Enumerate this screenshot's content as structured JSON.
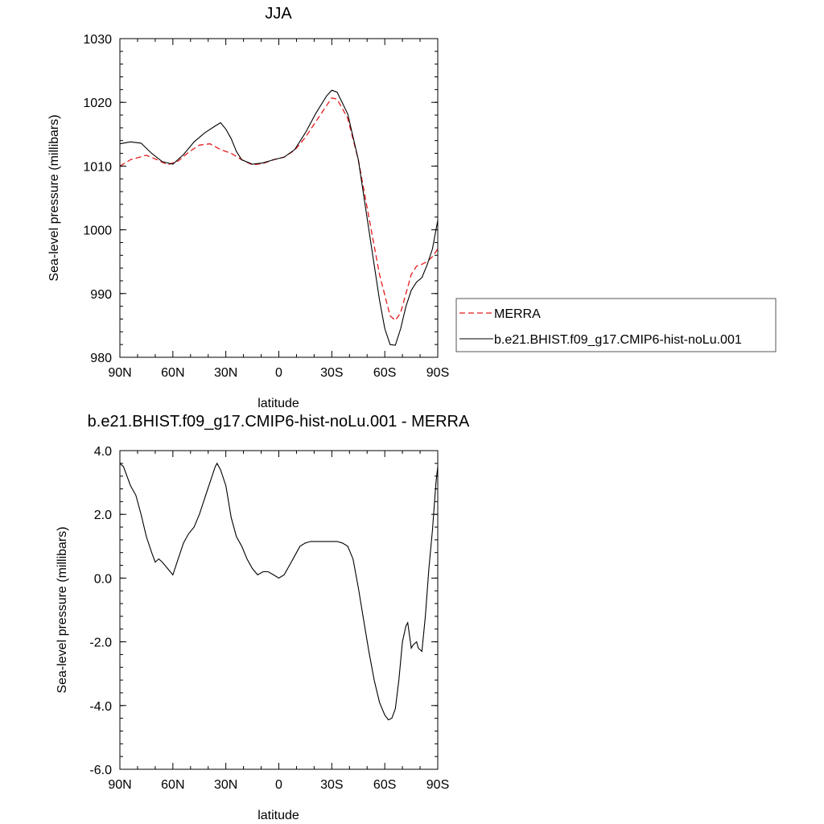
{
  "chart_data": [
    {
      "type": "line",
      "title": "JJA",
      "xlabel": "latitude",
      "ylabel": "Sea-level pressure (millibars)",
      "xlim": [
        90,
        -90
      ],
      "ylim": [
        980,
        1030
      ],
      "x_ticks": [
        90,
        60,
        30,
        0,
        -30,
        -60,
        -90
      ],
      "x_tick_labels": [
        "90N",
        "60N",
        "30N",
        "0",
        "30S",
        "60S",
        "90S"
      ],
      "y_ticks": [
        980,
        990,
        1000,
        1010,
        1020,
        1030
      ],
      "y_tick_labels": [
        "980",
        "990",
        "1000",
        "1010",
        "1020",
        "1030"
      ],
      "legend_position": "right",
      "series": [
        {
          "name": "MERRA",
          "color": "#e41a1c",
          "style": "dashed",
          "x": [
            90,
            84,
            75,
            69,
            63,
            57,
            51,
            45,
            39,
            33,
            27,
            21,
            15,
            9,
            3,
            -3,
            -9,
            -15,
            -21,
            -27,
            -30,
            -33,
            -39,
            -45,
            -51,
            -57,
            -63,
            -66,
            -69,
            -72,
            -75,
            -78,
            -81,
            -84,
            -87,
            -90
          ],
          "y": [
            1010.0,
            1011.0,
            1011.7,
            1011.0,
            1010.2,
            1010.8,
            1012.2,
            1013.3,
            1013.5,
            1012.6,
            1012.0,
            1011.0,
            1010.2,
            1010.4,
            1011.0,
            1011.4,
            1012.5,
            1014.5,
            1017.0,
            1019.5,
            1020.7,
            1020.5,
            1017.5,
            1011.0,
            1002.0,
            993.0,
            986.5,
            985.8,
            987.0,
            990.0,
            993.0,
            994.3,
            994.6,
            995.0,
            995.8,
            997.0
          ]
        },
        {
          "name": "b.e21.BHIST.f09_g17.CMIP6-hist-noLu.001",
          "color": "#000000",
          "style": "solid",
          "x": [
            90,
            84,
            78,
            72,
            66,
            60,
            54,
            48,
            42,
            36,
            33,
            30,
            27,
            24,
            21,
            15,
            9,
            3,
            -3,
            -9,
            -15,
            -21,
            -27,
            -30,
            -33,
            -39,
            -45,
            -51,
            -57,
            -60,
            -63,
            -66,
            -69,
            -72,
            -75,
            -78,
            -81,
            -84,
            -87,
            -90
          ],
          "y": [
            1013.5,
            1013.8,
            1013.6,
            1012.0,
            1010.7,
            1010.3,
            1011.8,
            1013.8,
            1015.2,
            1016.3,
            1016.8,
            1015.8,
            1014.3,
            1012.3,
            1011.0,
            1010.3,
            1010.5,
            1011.0,
            1011.4,
            1012.6,
            1015.2,
            1018.3,
            1021.0,
            1021.9,
            1021.6,
            1018.2,
            1011.0,
            1000.0,
            989.0,
            984.5,
            982.0,
            981.9,
            984.5,
            988.0,
            990.5,
            991.8,
            992.5,
            994.5,
            997.0,
            1001.5
          ]
        }
      ]
    },
    {
      "type": "line",
      "title": "b.e21.BHIST.f09_g17.CMIP6-hist-noLu.001 - MERRA",
      "xlabel": "latitude",
      "ylabel": "Sea-level pressure (millibars)",
      "xlim": [
        90,
        -90
      ],
      "ylim": [
        -6,
        4
      ],
      "x_ticks": [
        90,
        60,
        30,
        0,
        -30,
        -60,
        -90
      ],
      "x_tick_labels": [
        "90N",
        "60N",
        "30N",
        "0",
        "30S",
        "60S",
        "90S"
      ],
      "y_ticks": [
        -6,
        -4,
        -2,
        0,
        2,
        4
      ],
      "y_tick_labels": [
        "-6.0",
        "-4.0",
        "-2.0",
        "0.0",
        "2.0",
        "4.0"
      ],
      "series": [
        {
          "color": "#000000",
          "style": "solid",
          "x": [
            90,
            88,
            84,
            81,
            78,
            75,
            72,
            70,
            68,
            66,
            63,
            60,
            57,
            54,
            51,
            48,
            45,
            42,
            39,
            36,
            35,
            33,
            30,
            27,
            24,
            21,
            18,
            15,
            12,
            9,
            6,
            3,
            0,
            -3,
            -6,
            -9,
            -12,
            -15,
            -18,
            -21,
            -24,
            -27,
            -30,
            -33,
            -36,
            -39,
            -42,
            -45,
            -48,
            -51,
            -54,
            -57,
            -60,
            -62,
            -64,
            -66,
            -68,
            -70,
            -72,
            -73,
            -74,
            -75,
            -76,
            -78,
            -79,
            -81,
            -83,
            -85,
            -87,
            -89,
            -90
          ],
          "y": [
            3.6,
            3.5,
            2.9,
            2.6,
            2.0,
            1.3,
            0.8,
            0.5,
            0.6,
            0.5,
            0.3,
            0.1,
            0.6,
            1.1,
            1.4,
            1.6,
            2.0,
            2.5,
            3.0,
            3.5,
            3.6,
            3.4,
            2.9,
            1.9,
            1.3,
            1.0,
            0.6,
            0.3,
            0.1,
            0.2,
            0.2,
            0.1,
            0.0,
            0.1,
            0.4,
            0.7,
            1.0,
            1.1,
            1.15,
            1.15,
            1.15,
            1.15,
            1.15,
            1.15,
            1.1,
            1.0,
            0.6,
            -0.3,
            -1.3,
            -2.3,
            -3.2,
            -3.9,
            -4.3,
            -4.45,
            -4.4,
            -4.1,
            -3.2,
            -2.0,
            -1.5,
            -1.4,
            -1.8,
            -2.2,
            -2.1,
            -2.0,
            -2.2,
            -2.3,
            -1.2,
            0.3,
            1.5,
            3.0,
            3.5
          ]
        }
      ]
    }
  ]
}
